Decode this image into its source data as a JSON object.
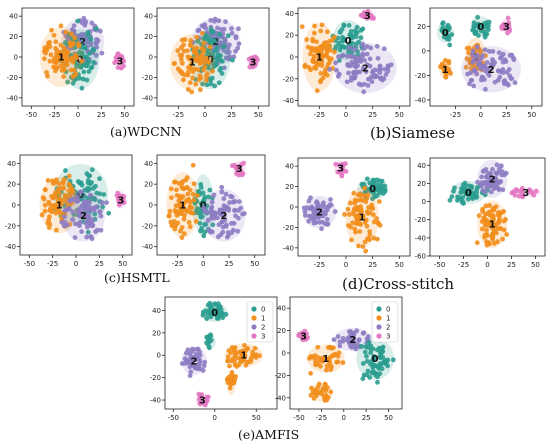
{
  "colors": {
    "c0": "#2a9d8f",
    "c1": "#f28e1c",
    "c2": "#8e7cc3",
    "c3": "#e377c2"
  },
  "captions": {
    "a": "(a)WDCNN",
    "b": "(b)Siamese",
    "c": "(c)HSMTL",
    "d": "(d)Cross-stitch",
    "e": "(e)AMFIS"
  },
  "chart_data": [
    {
      "id": "wdcnn-1",
      "type": "scatter",
      "group": "a",
      "xticks": [
        "-50",
        "-25",
        "0",
        "25",
        "50"
      ],
      "yticks": [
        "40",
        "20",
        "0",
        "-20",
        "-40"
      ],
      "xlim": [
        -60,
        60
      ],
      "ylim": [
        -48,
        48
      ],
      "clusters": [
        {
          "label": "2",
          "class": 2,
          "cx": 5,
          "cy": 15,
          "rx": 22,
          "ry": 22,
          "n": 90
        },
        {
          "label": "0",
          "class": 0,
          "cx": 2,
          "cy": -2,
          "rx": 20,
          "ry": 28,
          "n": 70
        },
        {
          "label": "1",
          "class": 1,
          "cx": -18,
          "cy": 0,
          "rx": 22,
          "ry": 28,
          "n": 80
        },
        {
          "label": "3",
          "class": 3,
          "cx": 45,
          "cy": -4,
          "rx": 5,
          "ry": 8,
          "n": 18
        }
      ]
    },
    {
      "id": "wdcnn-2",
      "type": "scatter",
      "group": "a",
      "xticks": [
        "-25",
        "0",
        "25",
        "50"
      ],
      "yticks": [
        "40",
        "20",
        "0",
        "-20",
        "-40"
      ],
      "xlim": [
        -45,
        60
      ],
      "ylim": [
        -48,
        48
      ],
      "clusters": [
        {
          "label": "2",
          "class": 2,
          "cx": 10,
          "cy": 15,
          "rx": 22,
          "ry": 22,
          "n": 90
        },
        {
          "label": "0",
          "class": 0,
          "cx": 5,
          "cy": -2,
          "rx": 18,
          "ry": 28,
          "n": 70
        },
        {
          "label": "1",
          "class": 1,
          "cx": -12,
          "cy": -5,
          "rx": 20,
          "ry": 26,
          "n": 80
        },
        {
          "label": "3",
          "class": 3,
          "cx": 45,
          "cy": -5,
          "rx": 5,
          "ry": 7,
          "n": 18
        }
      ]
    },
    {
      "id": "siamese-1",
      "type": "scatter",
      "group": "b",
      "xticks": [
        "-25",
        "0",
        "25",
        "50"
      ],
      "yticks": [
        "40",
        "20",
        "0",
        "-20",
        "-40"
      ],
      "xlim": [
        -45,
        60
      ],
      "ylim": [
        -45,
        45
      ],
      "clusters": [
        {
          "label": "3",
          "class": 3,
          "cx": 20,
          "cy": 38,
          "rx": 6,
          "ry": 5,
          "n": 16
        },
        {
          "label": "0",
          "class": 0,
          "cx": 2,
          "cy": 15,
          "rx": 14,
          "ry": 18,
          "n": 60
        },
        {
          "label": "1",
          "class": 1,
          "cx": -25,
          "cy": 0,
          "rx": 15,
          "ry": 30,
          "n": 80
        },
        {
          "label": "2",
          "class": 2,
          "cx": 18,
          "cy": -10,
          "rx": 28,
          "ry": 22,
          "n": 90
        }
      ]
    },
    {
      "id": "siamese-2",
      "type": "scatter",
      "group": "b",
      "xticks": [
        "-25",
        "0",
        "25",
        "50"
      ],
      "yticks": [
        "20",
        "0",
        "-20",
        "-40"
      ],
      "xlim": [
        -50,
        60
      ],
      "ylim": [
        -45,
        35
      ],
      "clusters": [
        {
          "label": "3",
          "class": 3,
          "cx": 25,
          "cy": 20,
          "rx": 5,
          "ry": 6,
          "n": 14
        },
        {
          "label": "0",
          "class": 0,
          "cx": 0,
          "cy": 20,
          "rx": 10,
          "ry": 8,
          "n": 30
        },
        {
          "label": "0",
          "class": 0,
          "cx": -35,
          "cy": 15,
          "rx": 8,
          "ry": 8,
          "n": 22
        },
        {
          "label": "1",
          "class": 1,
          "cx": -5,
          "cy": -5,
          "rx": 10,
          "ry": 15,
          "n": 40
        },
        {
          "label": "1",
          "class": 1,
          "cx": -35,
          "cy": -15,
          "rx": 6,
          "ry": 8,
          "n": 18
        },
        {
          "label": "2",
          "class": 2,
          "cx": 10,
          "cy": -15,
          "rx": 28,
          "ry": 18,
          "n": 80
        }
      ]
    },
    {
      "id": "hsmtl-1",
      "type": "scatter",
      "group": "c",
      "xticks": [
        "-50",
        "-25",
        "0",
        "25",
        "50"
      ],
      "yticks": [
        "40",
        "20",
        "0",
        "-20",
        "-40"
      ],
      "xlim": [
        -60,
        60
      ],
      "ylim": [
        -48,
        48
      ],
      "clusters": [
        {
          "label": "0",
          "class": 0,
          "cx": 5,
          "cy": 10,
          "rx": 28,
          "ry": 28,
          "n": 80
        },
        {
          "label": "1",
          "class": 1,
          "cx": -18,
          "cy": 0,
          "rx": 20,
          "ry": 26,
          "n": 80
        },
        {
          "label": "2",
          "class": 2,
          "cx": 8,
          "cy": -10,
          "rx": 22,
          "ry": 24,
          "n": 80
        },
        {
          "label": "3",
          "class": 3,
          "cx": 48,
          "cy": 5,
          "rx": 5,
          "ry": 8,
          "n": 16
        }
      ]
    },
    {
      "id": "hsmtl-2",
      "type": "scatter",
      "group": "c",
      "xticks": [
        "-25",
        "0",
        "25",
        "50"
      ],
      "yticks": [
        "40",
        "20",
        "0",
        "-20",
        "-40"
      ],
      "xlim": [
        -45,
        60
      ],
      "ylim": [
        -48,
        48
      ],
      "clusters": [
        {
          "label": "3",
          "class": 3,
          "cx": 35,
          "cy": 35,
          "rx": 6,
          "ry": 7,
          "n": 16
        },
        {
          "label": "0",
          "class": 0,
          "cx": 0,
          "cy": 0,
          "rx": 10,
          "ry": 28,
          "n": 50
        },
        {
          "label": "1",
          "class": 1,
          "cx": -20,
          "cy": 0,
          "rx": 15,
          "ry": 30,
          "n": 80
        },
        {
          "label": "2",
          "class": 2,
          "cx": 20,
          "cy": -10,
          "rx": 20,
          "ry": 24,
          "n": 80
        }
      ]
    },
    {
      "id": "cross-1",
      "type": "scatter",
      "group": "d",
      "xticks": [
        "-25",
        "0",
        "25",
        "50"
      ],
      "yticks": [
        "40",
        "20",
        "0",
        "-20",
        "-40"
      ],
      "xlim": [
        -45,
        60
      ],
      "ylim": [
        -48,
        48
      ],
      "clusters": [
        {
          "label": "3",
          "class": 3,
          "cx": -5,
          "cy": 38,
          "rx": 6,
          "ry": 7,
          "n": 16
        },
        {
          "label": "0",
          "class": 0,
          "cx": 25,
          "cy": 18,
          "rx": 14,
          "ry": 10,
          "n": 50
        },
        {
          "label": "2",
          "class": 2,
          "cx": -25,
          "cy": -5,
          "rx": 15,
          "ry": 15,
          "n": 60
        },
        {
          "label": "1",
          "class": 1,
          "cx": 15,
          "cy": -10,
          "rx": 15,
          "ry": 28,
          "n": 80
        }
      ]
    },
    {
      "id": "cross-2",
      "type": "scatter",
      "group": "d",
      "xticks": [
        "-50",
        "-25",
        "0",
        "25",
        "50"
      ],
      "yticks": [
        "40",
        "20",
        "0",
        "-20",
        "-40",
        "-60"
      ],
      "xlim": [
        -60,
        60
      ],
      "ylim": [
        -60,
        48
      ],
      "clusters": [
        {
          "label": "0",
          "class": 0,
          "cx": -20,
          "cy": 10,
          "rx": 18,
          "ry": 12,
          "n": 55
        },
        {
          "label": "2",
          "class": 2,
          "cx": 5,
          "cy": 25,
          "rx": 15,
          "ry": 20,
          "n": 60
        },
        {
          "label": "3",
          "class": 3,
          "cx": 40,
          "cy": 10,
          "rx": 15,
          "ry": 5,
          "n": 20
        },
        {
          "label": "1",
          "class": 1,
          "cx": 5,
          "cy": -25,
          "rx": 15,
          "ry": 25,
          "n": 80
        }
      ]
    },
    {
      "id": "amfis-1",
      "type": "scatter",
      "group": "e",
      "xticks": [
        "-50",
        "0",
        "50"
      ],
      "yticks": [
        "40",
        "20",
        "0",
        "-20",
        "-40"
      ],
      "xlim": [
        -60,
        75
      ],
      "ylim": [
        -48,
        52
      ],
      "legend": [
        "0",
        "1",
        "2",
        "3"
      ],
      "clusters": [
        {
          "label": "0",
          "class": 0,
          "cx": 0,
          "cy": 38,
          "rx": 15,
          "ry": 8,
          "n": 45
        },
        {
          "label": "",
          "class": 0,
          "cx": -5,
          "cy": 12,
          "rx": 6,
          "ry": 6,
          "n": 14
        },
        {
          "label": "2",
          "class": 2,
          "cx": -25,
          "cy": -5,
          "rx": 15,
          "ry": 12,
          "n": 45
        },
        {
          "label": "1",
          "class": 1,
          "cx": 35,
          "cy": 0,
          "rx": 22,
          "ry": 10,
          "n": 50
        },
        {
          "label": "",
          "class": 1,
          "cx": 20,
          "cy": -25,
          "rx": 5,
          "ry": 10,
          "n": 18
        },
        {
          "label": "3",
          "class": 3,
          "cx": -15,
          "cy": -40,
          "rx": 8,
          "ry": 6,
          "n": 16
        }
      ]
    },
    {
      "id": "amfis-2",
      "type": "scatter",
      "group": "e",
      "xticks": [
        "-50",
        "-25",
        "0",
        "25",
        "50"
      ],
      "yticks": [
        "40",
        "20",
        "0",
        "-20",
        "-40"
      ],
      "xlim": [
        -60,
        65
      ],
      "ylim": [
        -50,
        50
      ],
      "legend": [
        "0",
        "1",
        "2",
        "3"
      ],
      "clusters": [
        {
          "label": "3",
          "class": 3,
          "cx": -45,
          "cy": 15,
          "rx": 6,
          "ry": 6,
          "n": 14
        },
        {
          "label": "2",
          "class": 2,
          "cx": 10,
          "cy": 12,
          "rx": 20,
          "ry": 10,
          "n": 40
        },
        {
          "label": "1",
          "class": 1,
          "cx": -20,
          "cy": -5,
          "rx": 20,
          "ry": 12,
          "n": 40
        },
        {
          "label": "",
          "class": 1,
          "cx": -25,
          "cy": -35,
          "rx": 12,
          "ry": 8,
          "n": 28
        },
        {
          "label": "0",
          "class": 0,
          "cx": 35,
          "cy": -5,
          "rx": 20,
          "ry": 18,
          "n": 60
        }
      ]
    }
  ]
}
